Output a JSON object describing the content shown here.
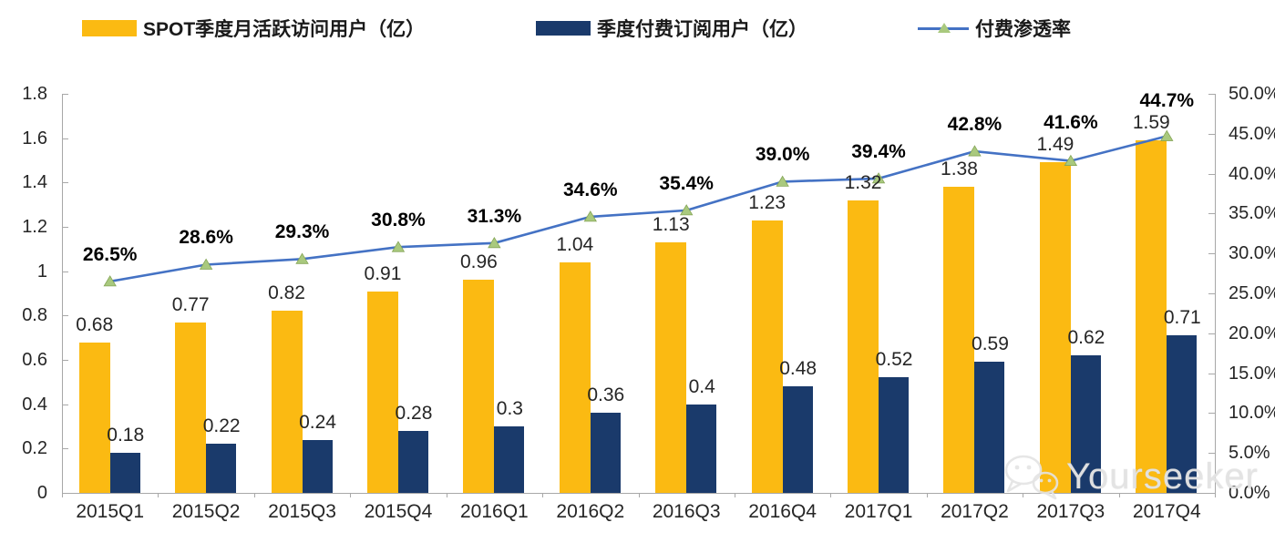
{
  "legend": {
    "items": [
      {
        "label": "SPOT季度月活跃访问用户（亿）",
        "swatch": "bar",
        "color": "#FBBA12"
      },
      {
        "label": "季度付费订阅用户（亿）",
        "swatch": "bar",
        "color": "#1A3A6B"
      },
      {
        "label": "付费渗透率",
        "swatch": "line-marker",
        "color": "#4472C4",
        "marker_color": "#A9C97E"
      }
    ]
  },
  "chart_data": {
    "type": "bar",
    "subtype": "combo-bar-line-dual-axis",
    "title": "",
    "categories": [
      "2015Q1",
      "2015Q2",
      "2015Q3",
      "2015Q4",
      "2016Q1",
      "2016Q2",
      "2016Q3",
      "2016Q4",
      "2017Q1",
      "2017Q2",
      "2017Q3",
      "2017Q4"
    ],
    "series": [
      {
        "name": "SPOT季度月活跃访问用户（亿）",
        "type": "bar",
        "axis": "left",
        "color": "#FBBA12",
        "values": [
          0.68,
          0.77,
          0.82,
          0.91,
          0.96,
          1.04,
          1.13,
          1.23,
          1.32,
          1.38,
          1.49,
          1.59
        ],
        "labels": [
          "0.68",
          "0.77",
          "0.82",
          "0.91",
          "0.96",
          "1.04",
          "1.13",
          "1.23",
          "1.32",
          "1.38",
          "1.49",
          "1.59"
        ]
      },
      {
        "name": "季度付费订阅用户（亿）",
        "type": "bar",
        "axis": "left",
        "color": "#1A3A6B",
        "values": [
          0.18,
          0.22,
          0.24,
          0.28,
          0.3,
          0.36,
          0.4,
          0.48,
          0.52,
          0.59,
          0.62,
          0.71
        ],
        "labels": [
          "0.18",
          "0.22",
          "0.24",
          "0.28",
          "0.3",
          "0.36",
          "0.4",
          "0.48",
          "0.52",
          "0.59",
          "0.62",
          "0.71"
        ]
      },
      {
        "name": "付费渗透率",
        "type": "line",
        "axis": "right",
        "color": "#4472C4",
        "marker": "triangle",
        "marker_color": "#A9C97E",
        "values": [
          26.5,
          28.6,
          29.3,
          30.8,
          31.3,
          34.6,
          35.4,
          39.0,
          39.4,
          42.8,
          41.6,
          44.7
        ],
        "labels": [
          "26.5%",
          "28.6%",
          "29.3%",
          "30.8%",
          "31.3%",
          "34.6%",
          "35.4%",
          "39.0%",
          "39.4%",
          "42.8%",
          "41.6%",
          "44.7%"
        ]
      }
    ],
    "left_axis": {
      "min": 0,
      "max": 1.8,
      "step": 0.2,
      "tick_labels": [
        "1.8",
        "1.6",
        "1.4",
        "1.2",
        "1",
        "0.8",
        "0.6",
        "0.4",
        "0.2",
        "0"
      ]
    },
    "right_axis": {
      "min": 0,
      "max": 50,
      "step": 5,
      "tick_labels": [
        "50.0%",
        "45.0%",
        "40.0%",
        "35.0%",
        "30.0%",
        "25.0%",
        "20.0%",
        "15.0%",
        "10.0%",
        "5.0%",
        "0.0%"
      ]
    },
    "grid": false,
    "legend_position": "top"
  },
  "watermark": {
    "text": "Yourseeker",
    "icon": "wechat-icon"
  },
  "colors": {
    "background": "#FFFFFF",
    "axis_line": "#A8A8A8",
    "tick_text": "#262626",
    "value_label_text": "#262626",
    "pct_label_text": "#000000"
  }
}
